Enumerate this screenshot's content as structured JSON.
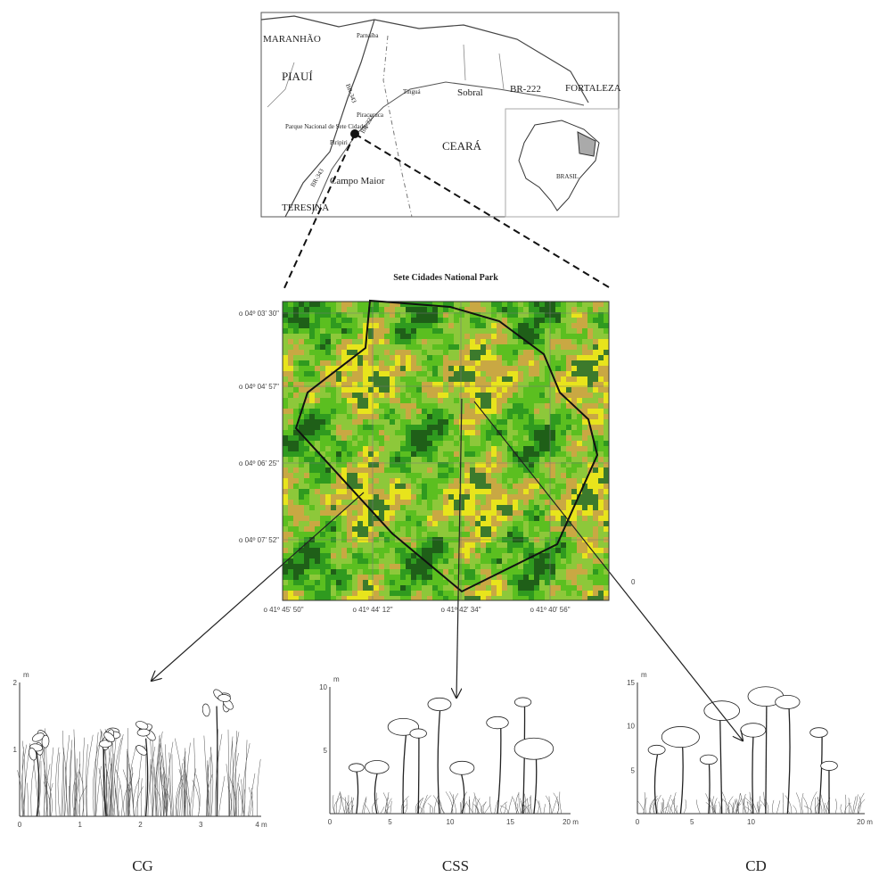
{
  "map": {
    "labels": [
      "MARANHÃO",
      "Parnaíba",
      "PIAUÍ",
      "CEARÁ",
      "Tinguá",
      "Sobral",
      "BR-222",
      "FORTALEZA",
      "Piracuruca",
      "Parque Nacional de Sete Cidades",
      "Piripiri",
      "BR-222",
      "BR-343",
      "Campo Maior",
      "TERESINA",
      "BR-343",
      "BRASIL"
    ]
  },
  "park": {
    "title": "Sete Cidades National Park",
    "latitude_labels": [
      "o 04º 03' 30\"",
      "o 04º 04' 57\"",
      "o 04º 06' 25\"",
      "o 04º 07' 52\""
    ],
    "longitude_labels": [
      "o 41º 45' 50\"",
      "o 41º 44' 12\"",
      "o 41º 42' 34\"",
      "o 41º 40' 56\""
    ],
    "scale_label": "0"
  },
  "profiles": [
    {
      "label": "CG",
      "y_unit": "m",
      "y_axis": [
        "2",
        "1"
      ],
      "x_axis": [
        "0",
        "1",
        "2",
        "3",
        "4 m"
      ]
    },
    {
      "label": "CSS",
      "y_unit": "m",
      "y_axis": [
        "10",
        "5"
      ],
      "x_axis": [
        "0",
        "5",
        "10",
        "15",
        "20 m"
      ]
    },
    {
      "label": "CD",
      "y_unit": "m",
      "y_axis": [
        "15",
        "10",
        "5"
      ],
      "x_axis": [
        "0",
        "5",
        "10",
        "20 m"
      ]
    }
  ]
}
